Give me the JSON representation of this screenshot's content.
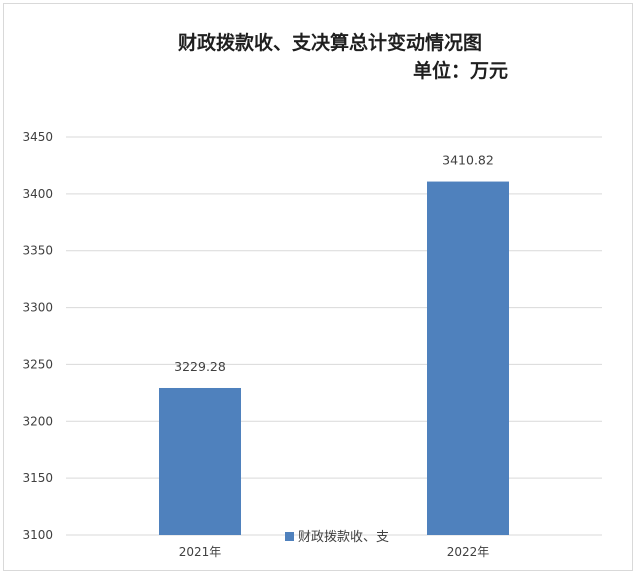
{
  "chart_data": {
    "type": "bar",
    "title": "财政拨款收、支决算总计变动情况图",
    "subtitle": "单位：万元",
    "categories": [
      "2021年",
      "2022年"
    ],
    "series": [
      {
        "name": "财政拨款收、支",
        "values": [
          3229.28,
          3410.82
        ],
        "color": "#4f81bd"
      }
    ],
    "data_labels": [
      "3229.28",
      "3410.82"
    ],
    "ylim": [
      3100,
      3450
    ],
    "yticks": [
      3100,
      3150,
      3200,
      3250,
      3300,
      3350,
      3400,
      3450
    ],
    "grid": true,
    "legend_position": "bottom",
    "xlabel": "",
    "ylabel": ""
  }
}
